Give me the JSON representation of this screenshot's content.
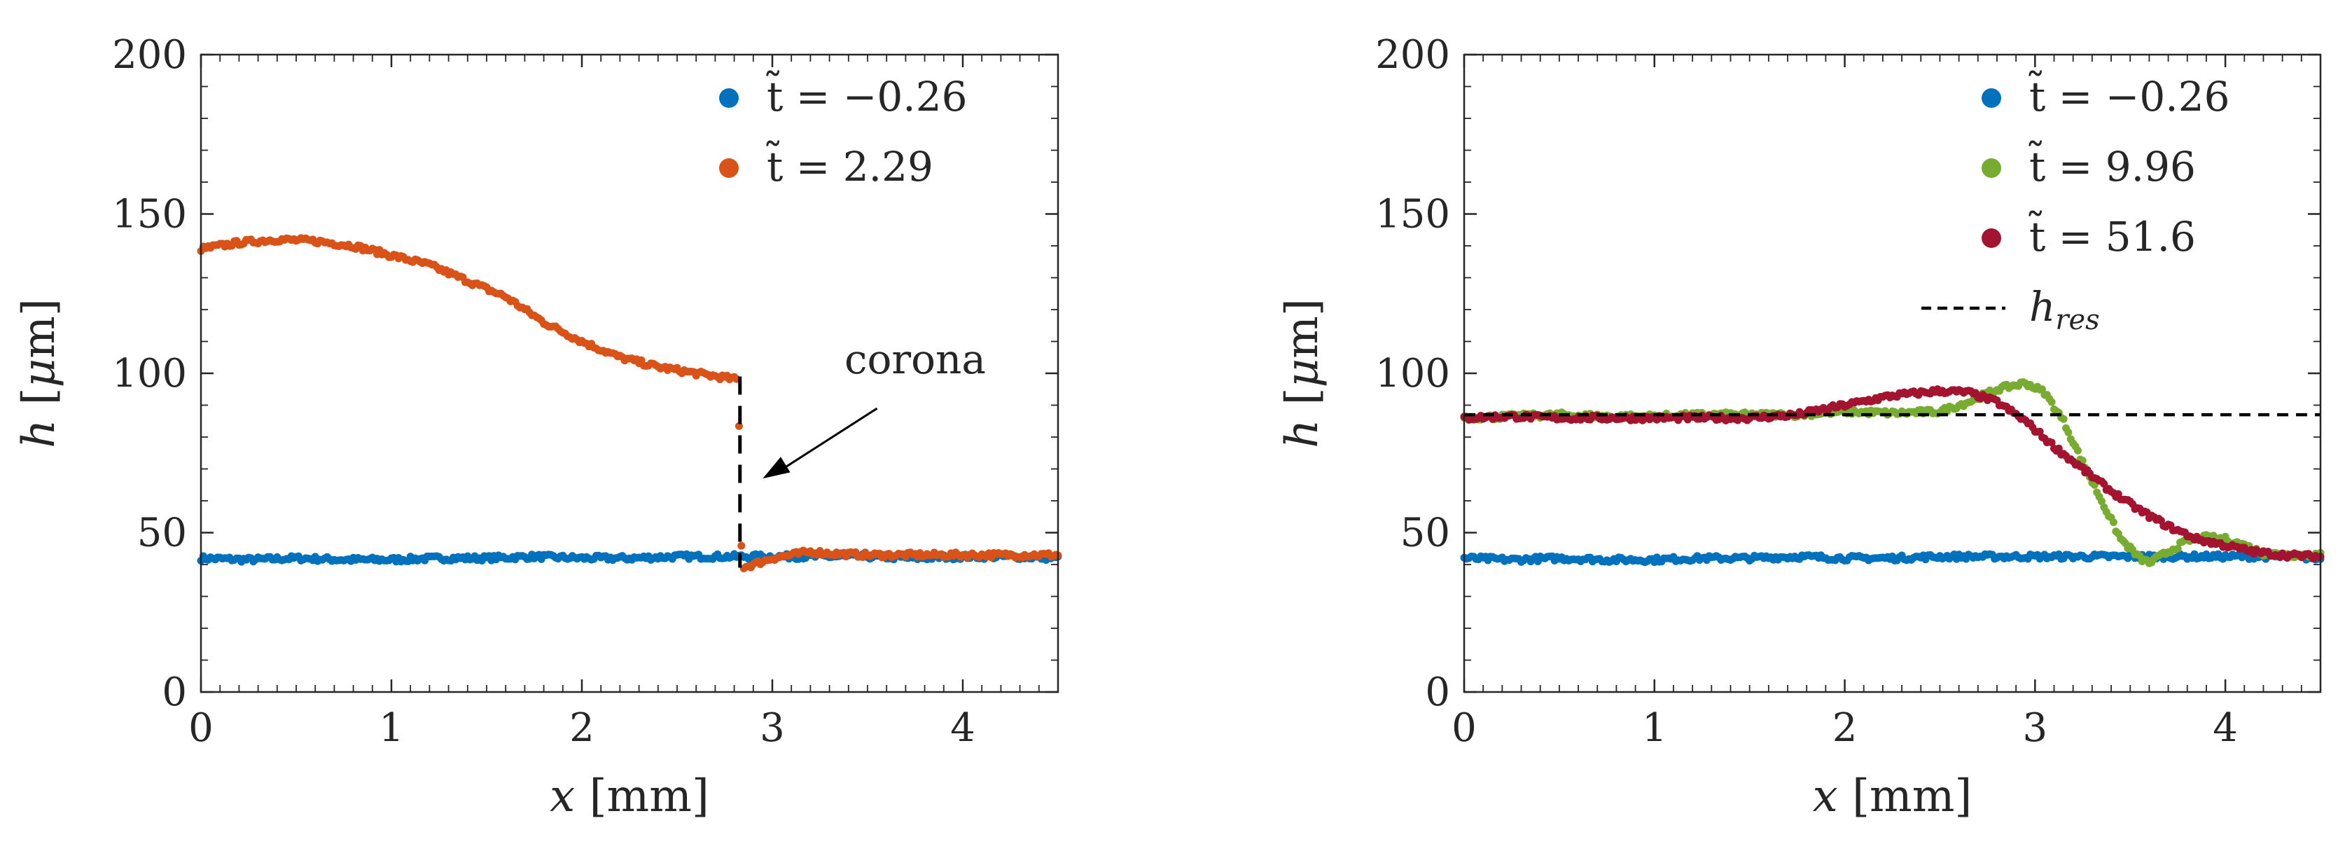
{
  "chart_data": [
    {
      "type": "scatter",
      "panel": "left",
      "xlabel": "x [mm]",
      "ylabel": "h [μm]",
      "xlim": [
        0,
        4.5
      ],
      "ylim": [
        0,
        200
      ],
      "xticks": [
        "0",
        "1",
        "2",
        "3",
        "4"
      ],
      "yticks": [
        "0",
        "50",
        "100",
        "150",
        "200"
      ],
      "legend": "top-right",
      "series": [
        {
          "name": "t̃ = −0.26",
          "color": "#0072BD",
          "x": [
            0,
            0.25,
            0.5,
            0.75,
            1.0,
            1.25,
            1.5,
            1.75,
            2.0,
            2.25,
            2.5,
            2.75,
            3.0,
            3.25,
            3.5,
            3.75,
            4.0,
            4.25,
            4.5
          ],
          "y": [
            42,
            41.5,
            42,
            41.5,
            41.5,
            42,
            42,
            42.5,
            42,
            42,
            42.5,
            42.5,
            42.5,
            42.5,
            42.5,
            42,
            42.5,
            42.5,
            42
          ]
        },
        {
          "name": "t̃ = 2.29",
          "color": "#D95319",
          "x": [
            0,
            0.2,
            0.4,
            0.6,
            0.8,
            1.0,
            1.2,
            1.4,
            1.6,
            1.8,
            2.0,
            2.2,
            2.4,
            2.6,
            2.82,
            2.84,
            2.9,
            3.0,
            3.1,
            3.2,
            3.3,
            3.5,
            3.75,
            4.0,
            4.25,
            4.5
          ],
          "y": [
            139,
            141,
            142,
            141.5,
            140,
            137,
            134,
            129,
            124,
            116,
            110,
            105,
            102,
            100,
            98,
            39,
            40,
            42,
            43,
            44,
            43.5,
            43,
            43,
            43,
            43,
            43
          ]
        }
      ],
      "annotations": [
        {
          "text": "corona",
          "x": 3.75,
          "y": 100
        }
      ],
      "extra_lines": [
        {
          "style": "dashed",
          "color": "#000000",
          "x": [
            2.83,
            2.83
          ],
          "y": [
            99,
            39
          ]
        }
      ]
    },
    {
      "type": "scatter",
      "panel": "right",
      "xlabel": "x [mm]",
      "ylabel": "h [μm]",
      "xlim": [
        0,
        4.5
      ],
      "ylim": [
        0,
        200
      ],
      "xticks": [
        "0",
        "1",
        "2",
        "3",
        "4"
      ],
      "yticks": [
        "0",
        "50",
        "100",
        "150",
        "200"
      ],
      "legend": "top-right",
      "series": [
        {
          "name": "t̃ = −0.26",
          "color": "#0072BD",
          "x": [
            0,
            0.25,
            0.5,
            0.75,
            1.0,
            1.25,
            1.5,
            1.75,
            2.0,
            2.25,
            2.5,
            2.75,
            3.0,
            3.25,
            3.5,
            3.75,
            4.0,
            4.25,
            4.5
          ],
          "y": [
            42,
            41.5,
            42,
            41.5,
            41.5,
            42,
            42,
            42.5,
            42,
            42,
            42.5,
            42.5,
            42.5,
            42.5,
            42.5,
            42.5,
            42.5,
            42.5,
            42
          ]
        },
        {
          "name": "t̃ = 9.96",
          "color": "#77AC30",
          "x": [
            0,
            0.25,
            0.5,
            0.75,
            1.0,
            1.25,
            1.5,
            1.75,
            2.0,
            2.25,
            2.5,
            2.65,
            2.8,
            2.95,
            3.05,
            3.15,
            3.25,
            3.35,
            3.45,
            3.55,
            3.6,
            3.7,
            3.8,
            3.9,
            4.0,
            4.1,
            4.2,
            4.35,
            4.5
          ],
          "y": [
            86,
            86.5,
            87,
            86.5,
            86.5,
            87,
            87,
            87,
            88,
            87.5,
            88,
            91,
            95,
            97,
            94,
            85,
            72,
            60,
            48,
            42,
            40.5,
            44,
            47.5,
            48.5,
            48,
            46,
            43.5,
            43,
            43
          ]
        },
        {
          "name": "t̃ = 51.6",
          "color": "#A2142F",
          "x": [
            0,
            0.25,
            0.5,
            0.75,
            1.0,
            1.25,
            1.5,
            1.75,
            2.0,
            2.25,
            2.5,
            2.65,
            2.8,
            2.95,
            3.1,
            3.25,
            3.4,
            3.55,
            3.7,
            3.85,
            4.0,
            4.15,
            4.3,
            4.5
          ],
          "y": [
            86,
            86.5,
            86,
            86,
            86,
            86,
            86,
            87,
            90,
            93,
            94.5,
            94,
            91,
            85,
            77,
            70,
            63,
            57,
            52,
            48,
            46,
            44,
            43,
            42.5
          ]
        }
      ],
      "reference_line": {
        "label": "h_res",
        "label_main": "h",
        "label_sub": "res",
        "value": 87,
        "style": "dashed",
        "color": "#000000"
      }
    }
  ]
}
